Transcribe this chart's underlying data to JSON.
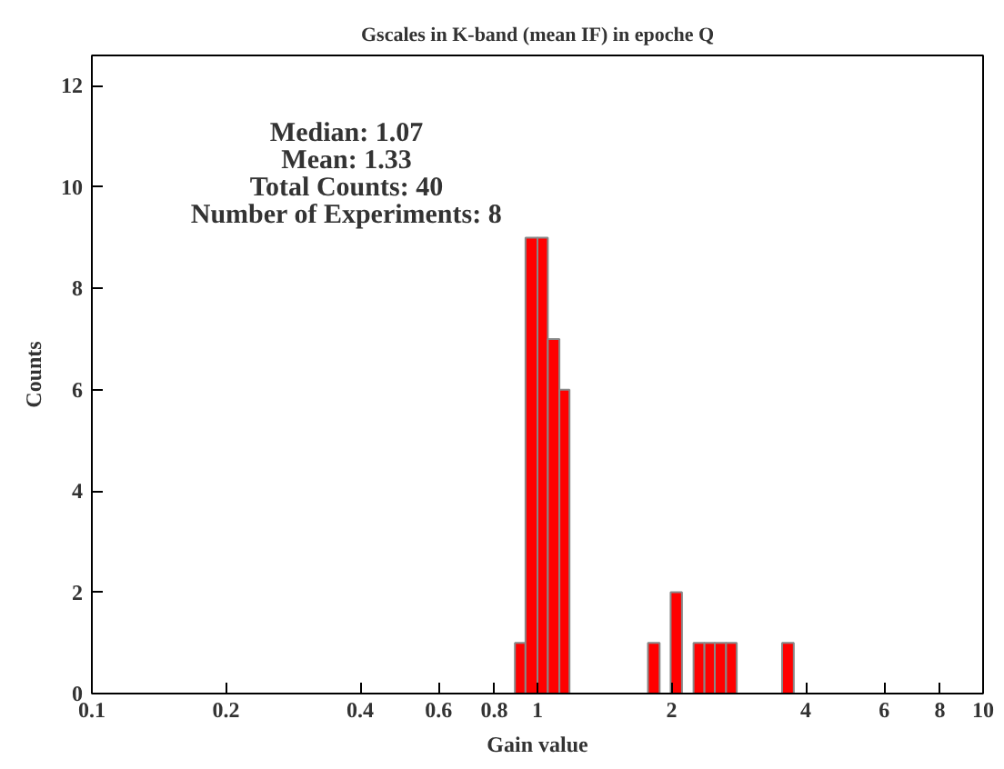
{
  "chart_data": {
    "type": "histogram",
    "title": "Gscales in K-band (mean IF) in epoche Q",
    "xlabel": "Gain value",
    "ylabel": "Counts",
    "annotations": [
      "Median: 1.07",
      "Mean: 1.33",
      "Total Counts: 40",
      "Number of Experiments: 8"
    ],
    "bins": [
      0.89,
      0.94,
      1.0,
      1.055,
      1.12,
      1.18,
      1.77,
      1.88,
      1.99,
      2.11,
      2.24,
      2.37,
      2.5,
      2.65,
      2.8,
      3.54,
      3.76
    ],
    "values": [
      1,
      9,
      9,
      7,
      6,
      0,
      1,
      0,
      2,
      0,
      1,
      1,
      1,
      1,
      0,
      1
    ],
    "color": "#ff0000",
    "log": "x",
    "grid": false,
    "xlim": [
      0.1,
      10
    ],
    "xticks": [
      0.1,
      0.2,
      0.4,
      0.6,
      0.8,
      1,
      2,
      4,
      6,
      8,
      10
    ],
    "ylim": [
      0,
      12.6
    ],
    "yticks": [
      0,
      2,
      4,
      6,
      8,
      10,
      12
    ]
  }
}
